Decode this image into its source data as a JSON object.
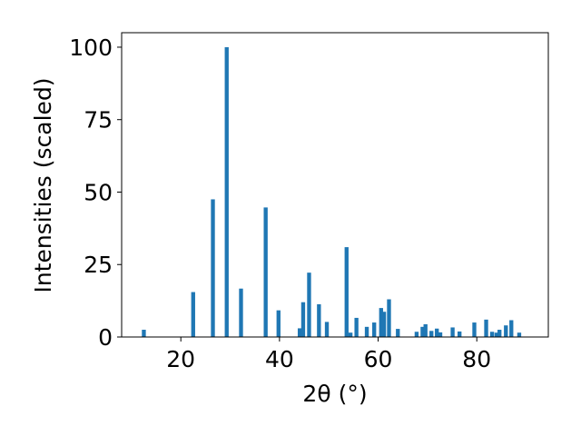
{
  "chart_data": {
    "type": "bar",
    "xlabel": "2θ (°)",
    "ylabel": "Intensities (scaled)",
    "xlim": [
      8,
      94.5
    ],
    "ylim": [
      0,
      105
    ],
    "xticks": [
      20,
      40,
      60,
      80
    ],
    "yticks": [
      0,
      25,
      50,
      75,
      100
    ],
    "grid": false,
    "bar_color": "#1f77b4",
    "bar_width": 0.8,
    "x": [
      12.5,
      22.5,
      26.5,
      29.3,
      32.2,
      37.2,
      39.8,
      44.1,
      44.8,
      46.0,
      48.0,
      49.6,
      53.6,
      54.4,
      55.6,
      57.7,
      59.2,
      60.6,
      61.2,
      62.2,
      64.0,
      67.8,
      69.0,
      69.6,
      70.8,
      71.9,
      72.6,
      75.1,
      76.5,
      79.5,
      81.9,
      83.1,
      84.0,
      84.6,
      85.9,
      87.0,
      88.6
    ],
    "values": [
      2.5,
      15.5,
      47.5,
      100,
      16.7,
      44.7,
      9.2,
      3.0,
      12.0,
      22.2,
      11.3,
      5.2,
      31.0,
      1.5,
      6.6,
      3.5,
      5.0,
      10.0,
      8.7,
      13.0,
      2.8,
      1.8,
      3.5,
      4.4,
      2.1,
      2.9,
      1.6,
      3.3,
      1.9,
      5.0,
      6.0,
      1.8,
      1.5,
      2.5,
      4.0,
      5.8,
      1.5
    ]
  }
}
